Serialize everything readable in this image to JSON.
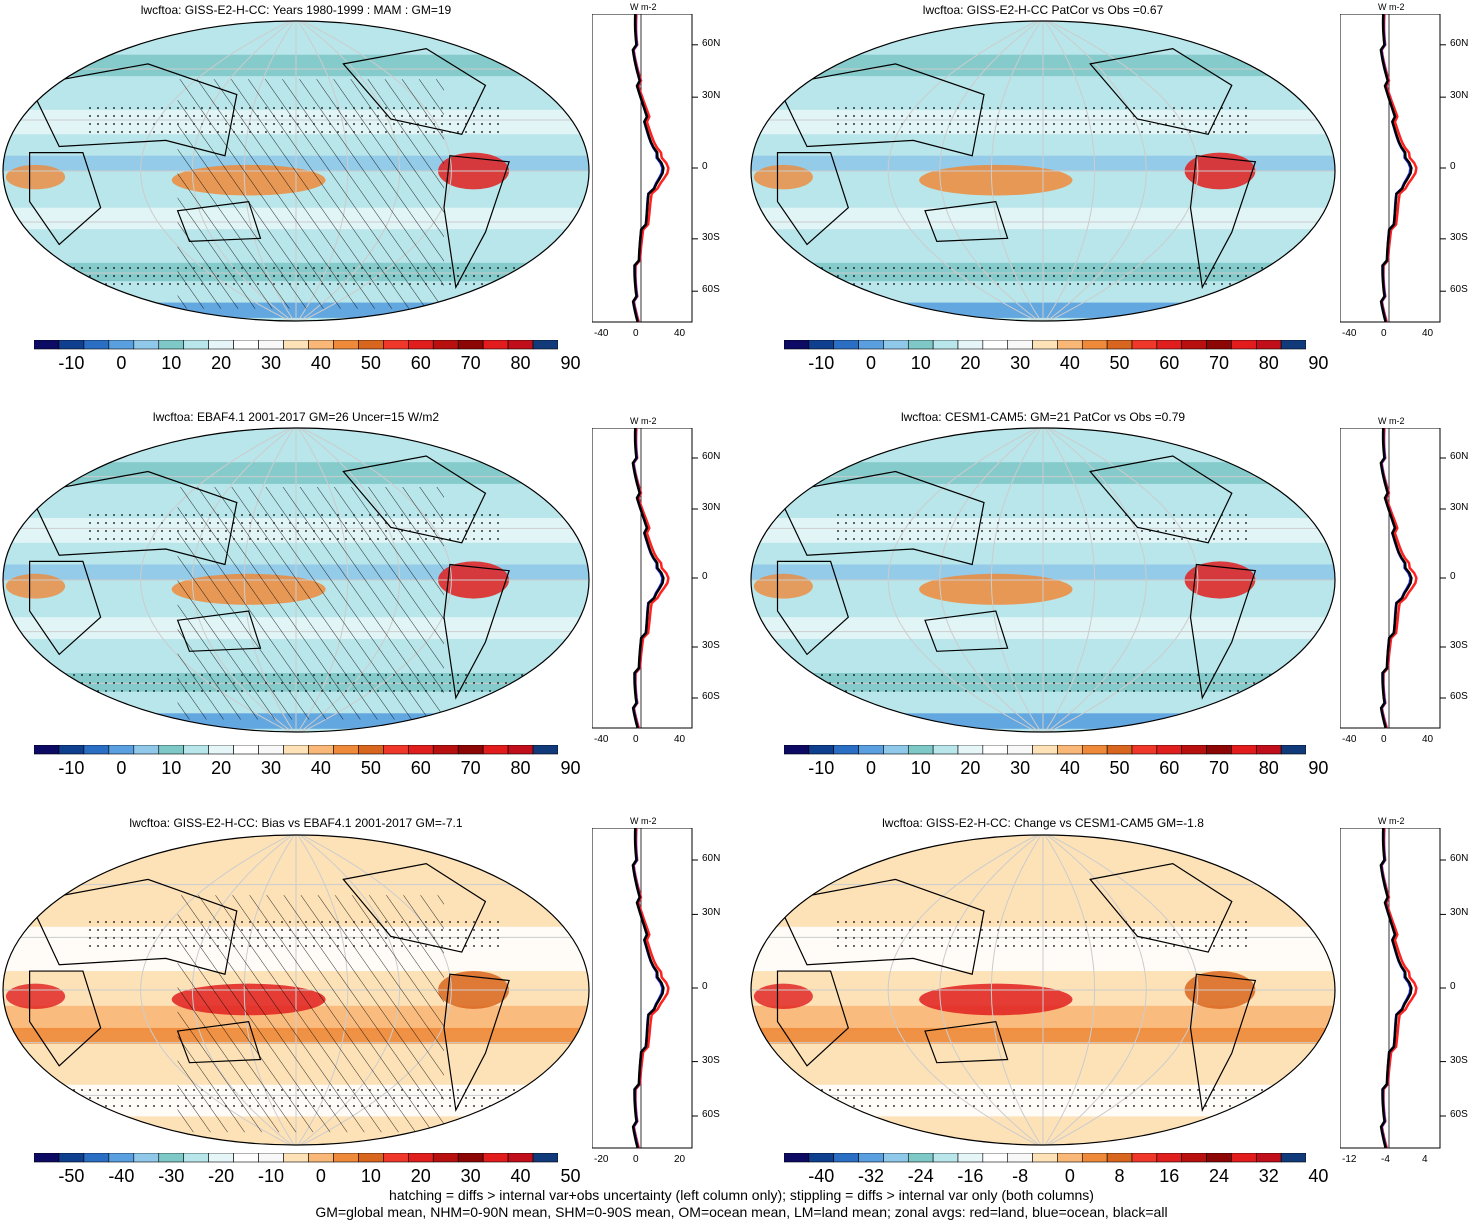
{
  "panels": [
    {
      "title": "lwcftoa: GISS-E2-H-CC: Years 1980-1999 : MAM : GM=19",
      "colorbar": [
        "-10",
        "0",
        "10",
        "20",
        "30",
        "40",
        "50",
        "60",
        "70",
        "80",
        "90"
      ],
      "zonal_x": [
        "-40",
        "0",
        "40"
      ],
      "lat": [
        "60N",
        "30N",
        "0",
        "30S",
        "60S"
      ],
      "unit": "W m-2"
    },
    {
      "title": "lwcftoa: GISS-E2-H-CC PatCor vs Obs =0.67",
      "colorbar": [
        "-10",
        "0",
        "10",
        "20",
        "30",
        "40",
        "50",
        "60",
        "70",
        "80",
        "90"
      ],
      "zonal_x": [
        "-40",
        "0",
        "40"
      ],
      "lat": [
        "60N",
        "30N",
        "0",
        "30S",
        "60S"
      ],
      "unit": "W m-2"
    },
    {
      "title": "lwcftoa: EBAF4.1 2001-2017 GM=26 Uncer=15 W/m2",
      "colorbar": [
        "-10",
        "0",
        "10",
        "20",
        "30",
        "40",
        "50",
        "60",
        "70",
        "80",
        "90"
      ],
      "zonal_x": [
        "-40",
        "0",
        "40"
      ],
      "lat": [
        "60N",
        "30N",
        "0",
        "30S",
        "60S"
      ],
      "unit": "W m-2"
    },
    {
      "title": "lwcftoa: CESM1-CAM5: GM=21 PatCor vs Obs =0.79",
      "colorbar": [
        "-10",
        "0",
        "10",
        "20",
        "30",
        "40",
        "50",
        "60",
        "70",
        "80",
        "90"
      ],
      "zonal_x": [
        "-40",
        "0",
        "40"
      ],
      "lat": [
        "60N",
        "30N",
        "0",
        "30S",
        "60S"
      ],
      "unit": "W m-2"
    },
    {
      "title": "lwcftoa: GISS-E2-H-CC: Bias vs EBAF4.1 2001-2017 GM=-7.1",
      "colorbar": [
        "-50",
        "-40",
        "-30",
        "-20",
        "-10",
        "0",
        "10",
        "20",
        "30",
        "40",
        "50"
      ],
      "zonal_x": [
        "-20",
        "0",
        "20"
      ],
      "lat": [
        "60N",
        "30N",
        "0",
        "30S",
        "60S"
      ],
      "unit": "W m-2"
    },
    {
      "title": "lwcftoa: GISS-E2-H-CC: Change vs CESM1-CAM5 GM=-1.8",
      "colorbar": [
        "-40",
        "-32",
        "-24",
        "-16",
        "-8",
        "0",
        "8",
        "16",
        "24",
        "32",
        "40"
      ],
      "zonal_x": [
        "-12",
        "-4",
        "4"
      ],
      "lat": [
        "60N",
        "30N",
        "0",
        "30S",
        "60S"
      ],
      "unit": "W m-2"
    }
  ],
  "colors": {
    "scale": [
      "#0d0a63",
      "#0f3f8f",
      "#2a6fc4",
      "#5aa0e0",
      "#8fc8e8",
      "#7fc8c8",
      "#b8e6ea",
      "#e6f6f8",
      "#ffffff",
      "#f8f8f8",
      "#fde2b8",
      "#f9b878",
      "#ee8a3a",
      "#d9661f",
      "#f0382a",
      "#e01e1e",
      "#b80f0f",
      "#8c0606",
      "#e21c1c",
      "#c00e1a",
      "#103a7a"
    ],
    "land_line": "#ff2020",
    "ocean_line": "#2030ff",
    "all_line": "#000000"
  },
  "footer": [
    "hatching = diffs > internal var+obs uncertainty (left column only); stippling = diffs > internal var only (both columns)",
    "GM=global mean, NHM=0-90N mean, SHM=0-90S mean, OM=ocean mean, LM=land mean; zonal avgs: red=land, blue=ocean, black=all"
  ]
}
